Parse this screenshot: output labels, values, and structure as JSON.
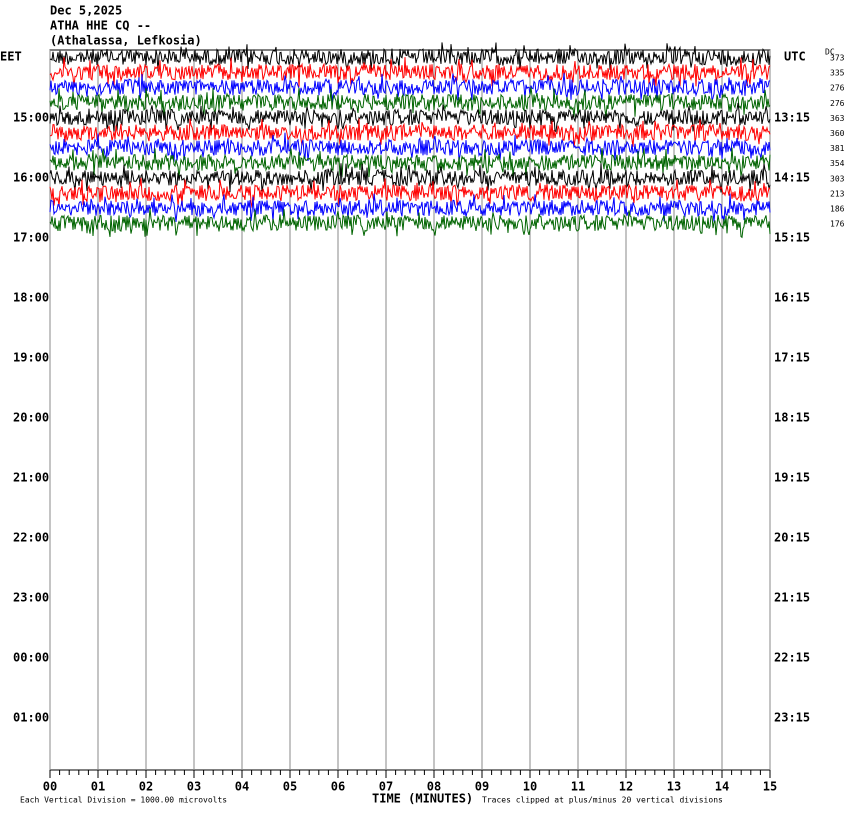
{
  "header": {
    "date": "Dec 5,2025",
    "station": "ATHA HHE CQ --",
    "location": "(Athalassa, Lefkosia)"
  },
  "left_label": "EET",
  "right_label": "UTC",
  "dc_label": "DC",
  "rows": [
    {
      "left": "15:00",
      "right": "13:15"
    },
    {
      "left": "16:00",
      "right": "14:15"
    },
    {
      "left": "17:00",
      "right": "15:15"
    },
    {
      "left": "18:00",
      "right": "16:15"
    },
    {
      "left": "19:00",
      "right": "17:15"
    },
    {
      "left": "20:00",
      "right": "18:15"
    },
    {
      "left": "21:00",
      "right": "19:15"
    },
    {
      "left": "22:00",
      "right": "20:15"
    },
    {
      "left": "23:00",
      "right": "21:15"
    },
    {
      "left": "00:00",
      "right": "22:15"
    },
    {
      "left": "01:00",
      "right": "23:15"
    }
  ],
  "traces": [
    {
      "color": "#000000",
      "dc": "373"
    },
    {
      "color": "#ff0000",
      "dc": "335"
    },
    {
      "color": "#0000ff",
      "dc": "276"
    },
    {
      "color": "#006400",
      "dc": "276"
    },
    {
      "color": "#000000",
      "dc": "363"
    },
    {
      "color": "#ff0000",
      "dc": "360"
    },
    {
      "color": "#0000ff",
      "dc": "381"
    },
    {
      "color": "#006400",
      "dc": "354"
    },
    {
      "color": "#000000",
      "dc": "303"
    },
    {
      "color": "#ff0000",
      "dc": "213"
    },
    {
      "color": "#0000ff",
      "dc": "186"
    },
    {
      "color": "#006400",
      "dc": "176"
    }
  ],
  "x_ticks": [
    "00",
    "01",
    "02",
    "03",
    "04",
    "05",
    "06",
    "07",
    "08",
    "09",
    "10",
    "11",
    "12",
    "13",
    "14",
    "15"
  ],
  "x_label": "TIME (MINUTES)",
  "footer_left": "Each Vertical Division = 1000.00 microvolts",
  "footer_right": "Traces clipped at plus/minus 20 vertical divisions"
}
